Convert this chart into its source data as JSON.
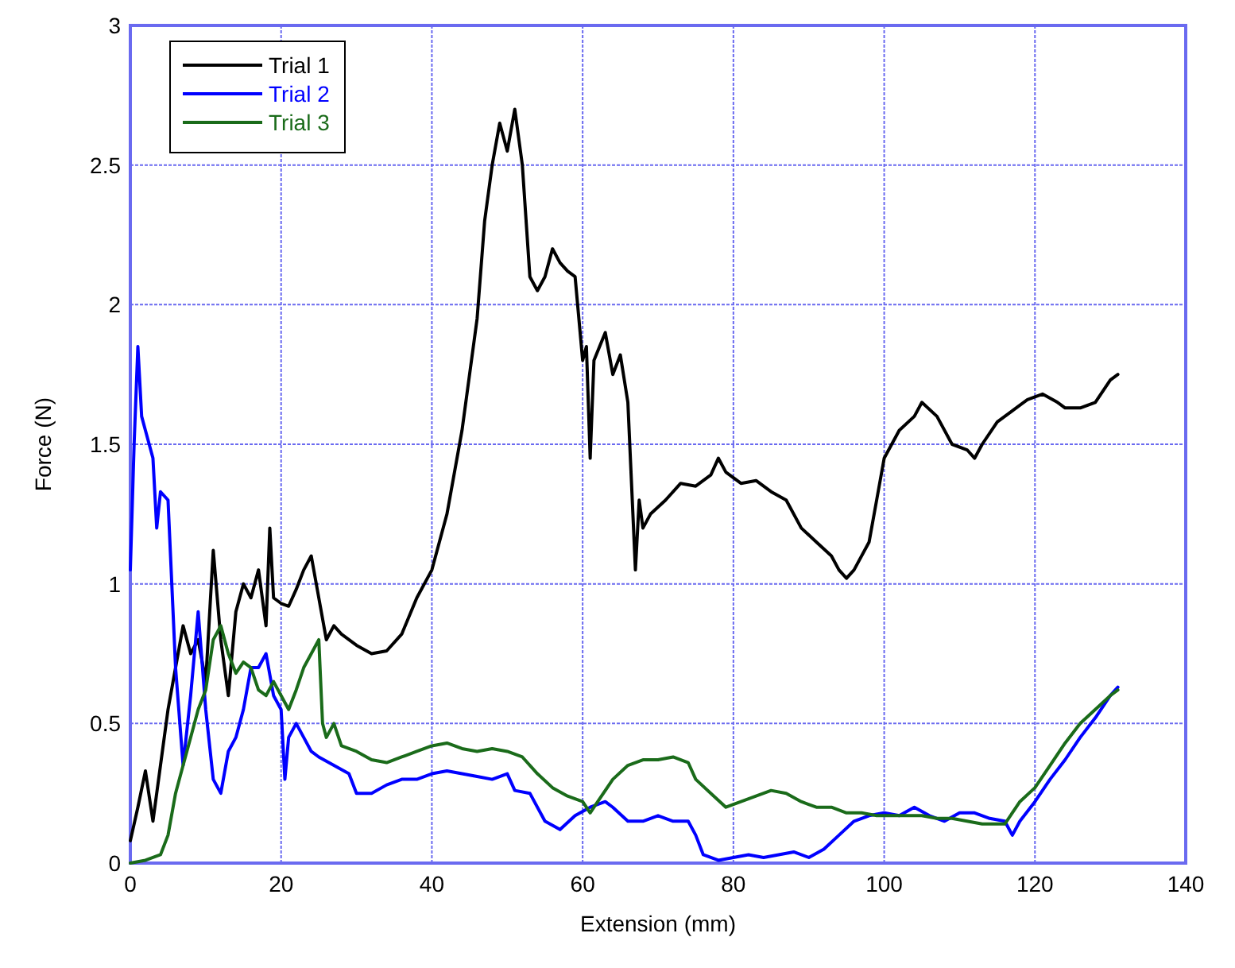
{
  "chart_data": {
    "type": "line",
    "xlabel": "Extension (mm)",
    "ylabel": "Force (N)",
    "xlim": [
      0,
      140
    ],
    "ylim": [
      0,
      3
    ],
    "xticks": [
      0,
      20,
      40,
      60,
      80,
      100,
      120,
      140
    ],
    "yticks": [
      0,
      0.5,
      1,
      1.5,
      2,
      2.5,
      3
    ],
    "grid": true,
    "legend": "top left",
    "line_style": "solid",
    "series": [
      {
        "name": "Trial 1",
        "color": "#000000",
        "x": [
          0,
          1,
          2,
          3,
          4,
          5,
          6,
          7,
          8,
          9,
          10,
          11,
          12,
          13,
          14,
          15,
          16,
          17,
          18,
          18.5,
          19,
          20,
          21,
          22,
          23,
          24,
          25,
          26,
          27,
          28,
          30,
          32,
          34,
          36,
          38,
          40,
          42,
          44,
          46,
          47,
          48,
          49,
          50,
          51,
          52,
          53,
          54,
          55,
          56,
          57,
          58,
          59,
          60,
          60.5,
          61,
          61.5,
          63,
          64,
          65,
          66,
          67,
          67.5,
          68,
          69,
          71,
          73,
          75,
          77,
          78,
          79,
          81,
          83,
          85,
          87,
          89,
          91,
          93,
          94,
          95,
          96,
          98,
          99,
          100,
          102,
          104,
          105,
          107,
          109,
          111,
          112,
          113,
          115,
          117,
          119,
          121,
          123,
          124,
          126,
          128,
          130,
          131
        ],
        "values": [
          0.08,
          0.2,
          0.33,
          0.15,
          0.35,
          0.55,
          0.7,
          0.85,
          0.75,
          0.8,
          0.65,
          1.12,
          0.8,
          0.6,
          0.9,
          1.0,
          0.95,
          1.05,
          0.85,
          1.2,
          0.95,
          0.93,
          0.92,
          0.98,
          1.05,
          1.1,
          0.95,
          0.8,
          0.85,
          0.82,
          0.78,
          0.75,
          0.76,
          0.82,
          0.95,
          1.05,
          1.25,
          1.55,
          1.95,
          2.3,
          2.5,
          2.65,
          2.55,
          2.7,
          2.5,
          2.1,
          2.05,
          2.1,
          2.2,
          2.15,
          2.12,
          2.1,
          1.8,
          1.85,
          1.45,
          1.8,
          1.9,
          1.75,
          1.82,
          1.65,
          1.05,
          1.3,
          1.2,
          1.25,
          1.3,
          1.36,
          1.35,
          1.39,
          1.45,
          1.4,
          1.36,
          1.37,
          1.33,
          1.3,
          1.2,
          1.15,
          1.1,
          1.05,
          1.02,
          1.05,
          1.15,
          1.3,
          1.45,
          1.55,
          1.6,
          1.65,
          1.6,
          1.5,
          1.48,
          1.45,
          1.5,
          1.58,
          1.62,
          1.66,
          1.68,
          1.65,
          1.63,
          1.63,
          1.65,
          1.73,
          1.75
        ]
      },
      {
        "name": "Trial 2",
        "color": "#0000ff",
        "x": [
          0,
          0.5,
          1,
          1.5,
          2,
          3,
          3.5,
          4,
          5,
          6,
          7,
          8,
          9,
          10,
          11,
          12,
          13,
          14,
          15,
          16,
          17,
          18,
          19,
          20,
          20.5,
          21,
          22,
          23,
          24,
          25,
          27,
          29,
          30,
          32,
          34,
          36,
          38,
          40,
          42,
          44,
          46,
          48,
          50,
          51,
          53,
          55,
          57,
          59,
          61,
          63,
          64,
          66,
          68,
          70,
          72,
          74,
          75,
          76,
          78,
          80,
          82,
          84,
          86,
          88,
          90,
          92,
          94,
          96,
          98,
          100,
          102,
          104,
          106,
          108,
          110,
          112,
          114,
          116,
          117,
          118,
          120,
          122,
          124,
          126,
          128,
          130,
          131
        ],
        "values": [
          1.05,
          1.5,
          1.85,
          1.6,
          1.55,
          1.45,
          1.2,
          1.33,
          1.3,
          0.7,
          0.35,
          0.6,
          0.9,
          0.55,
          0.3,
          0.25,
          0.4,
          0.45,
          0.55,
          0.7,
          0.7,
          0.75,
          0.6,
          0.55,
          0.3,
          0.45,
          0.5,
          0.45,
          0.4,
          0.38,
          0.35,
          0.32,
          0.25,
          0.25,
          0.28,
          0.3,
          0.3,
          0.32,
          0.33,
          0.32,
          0.31,
          0.3,
          0.32,
          0.26,
          0.25,
          0.15,
          0.12,
          0.17,
          0.2,
          0.22,
          0.2,
          0.15,
          0.15,
          0.17,
          0.15,
          0.15,
          0.1,
          0.03,
          0.01,
          0.02,
          0.03,
          0.02,
          0.03,
          0.04,
          0.02,
          0.05,
          0.1,
          0.15,
          0.17,
          0.18,
          0.17,
          0.2,
          0.17,
          0.15,
          0.18,
          0.18,
          0.16,
          0.15,
          0.1,
          0.15,
          0.22,
          0.3,
          0.37,
          0.45,
          0.52,
          0.6,
          0.63
        ]
      },
      {
        "name": "Trial 3",
        "color": "#1a6b1a",
        "x": [
          0,
          2,
          4,
          5,
          6,
          7,
          8,
          9,
          10,
          11,
          12,
          13,
          14,
          15,
          16,
          17,
          18,
          19,
          20,
          21,
          22,
          23,
          24,
          25,
          25.5,
          26,
          27,
          28,
          30,
          32,
          34,
          36,
          38,
          40,
          42,
          44,
          46,
          48,
          50,
          52,
          54,
          56,
          58,
          60,
          61,
          62,
          64,
          66,
          68,
          70,
          72,
          74,
          75,
          77,
          79,
          81,
          83,
          85,
          87,
          89,
          91,
          93,
          95,
          97,
          99,
          101,
          103,
          105,
          107,
          109,
          111,
          113,
          115,
          116,
          118,
          120,
          122,
          124,
          126,
          128,
          130,
          131
        ],
        "values": [
          0,
          0.01,
          0.03,
          0.1,
          0.25,
          0.35,
          0.45,
          0.55,
          0.62,
          0.8,
          0.85,
          0.75,
          0.68,
          0.72,
          0.7,
          0.62,
          0.6,
          0.65,
          0.6,
          0.55,
          0.62,
          0.7,
          0.75,
          0.8,
          0.5,
          0.45,
          0.5,
          0.42,
          0.4,
          0.37,
          0.36,
          0.38,
          0.4,
          0.42,
          0.43,
          0.41,
          0.4,
          0.41,
          0.4,
          0.38,
          0.32,
          0.27,
          0.24,
          0.22,
          0.18,
          0.22,
          0.3,
          0.35,
          0.37,
          0.37,
          0.38,
          0.36,
          0.3,
          0.25,
          0.2,
          0.22,
          0.24,
          0.26,
          0.25,
          0.22,
          0.2,
          0.2,
          0.18,
          0.18,
          0.17,
          0.17,
          0.17,
          0.17,
          0.16,
          0.16,
          0.15,
          0.14,
          0.14,
          0.14,
          0.22,
          0.27,
          0.35,
          0.43,
          0.5,
          0.55,
          0.6,
          0.62
        ]
      }
    ]
  }
}
